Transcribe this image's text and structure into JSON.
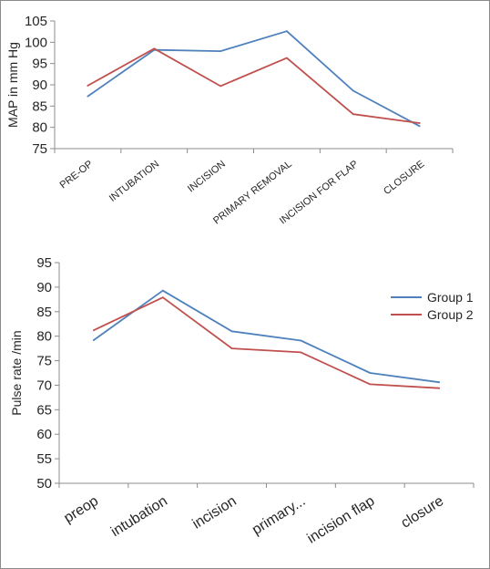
{
  "colors": {
    "group1": "#4f81bd",
    "group2": "#c0504d"
  },
  "chart_data": [
    {
      "type": "line",
      "title": "",
      "xlabel": "",
      "ylabel": "MAP in mm Hg",
      "categories": [
        "PRE-OP",
        "INTUBATION",
        "INCISION",
        "PRIMARY REMOVAL",
        "INCISION FOR FLAP",
        "CLOSURE"
      ],
      "ylim": [
        75,
        105
      ],
      "yticks": [
        75,
        80,
        85,
        90,
        95,
        100,
        105
      ],
      "grid": false,
      "legend": "none",
      "series": [
        {
          "values": [
            87.3,
            98.2,
            97.9,
            102.6,
            88.6,
            80.3
          ]
        },
        {
          "values": [
            89.8,
            98.5,
            89.7,
            96.3,
            83.1,
            81.0
          ]
        }
      ]
    },
    {
      "type": "line",
      "title": "",
      "xlabel": "",
      "ylabel": "Pulse rate /min",
      "categories": [
        "preop",
        "intubation",
        "incision",
        "primary...",
        "incision flap",
        "closure"
      ],
      "ylim": [
        50,
        95
      ],
      "yticks": [
        50,
        55,
        60,
        65,
        70,
        75,
        80,
        85,
        90,
        95
      ],
      "grid": false,
      "legend": "right",
      "series": [
        {
          "name": "Group 1",
          "values": [
            79.2,
            89.3,
            81.0,
            79.1,
            72.5,
            70.6
          ]
        },
        {
          "name": "Group 2",
          "values": [
            81.2,
            87.9,
            77.5,
            76.7,
            70.2,
            69.4
          ]
        }
      ]
    }
  ]
}
